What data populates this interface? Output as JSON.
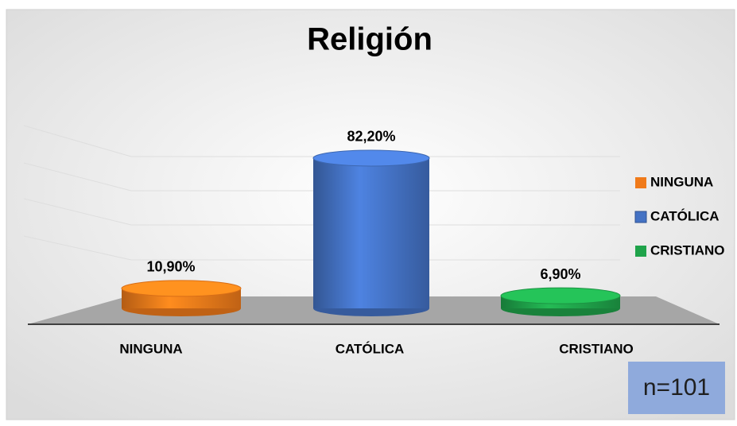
{
  "chart_data": {
    "type": "bar",
    "title": "Religión",
    "categories": [
      "NINGUNA",
      "CATÓLICA",
      "CRISTIANO"
    ],
    "values": [
      10.9,
      82.2,
      6.9
    ],
    "value_labels": [
      "10,90%",
      "82,20%",
      "6,90%"
    ],
    "colors": [
      "#f07a1a",
      "#4472c4",
      "#1fa34a"
    ],
    "ylim": [
      0,
      100
    ],
    "legend": "right",
    "annotation": "n=101"
  }
}
